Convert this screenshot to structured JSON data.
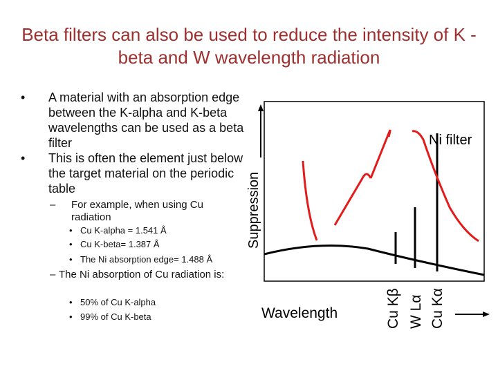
{
  "title": "Beta filters can also be used to reduce the intensity of K -beta and W wavelength radiation",
  "bullets": {
    "b1": "A material with an absorption edge between the K-alpha and K-beta wavelengths can be used as a beta filter",
    "b2": "This is often the element just below the target material on the periodic table",
    "sub1": "For example, when using Cu radiation",
    "sub1_items": [
      "Cu K-alpha = 1.541 Å",
      "Cu K-beta= 1.387 Å",
      "The Ni absorption edge= 1.488 Å"
    ],
    "sub2": "The Ni absorption of Cu radiation is:",
    "sub2_items": [
      "50% of Cu K-alpha",
      "99% of Cu K-beta"
    ]
  },
  "chart": {
    "ylabel": "Suppression",
    "xlabel": "Wavelength",
    "curve_label": "Ni filter",
    "line_labels": [
      "Cu Kβ",
      "W Lα",
      "Cu Kα"
    ],
    "line_color": "#000000"
  }
}
